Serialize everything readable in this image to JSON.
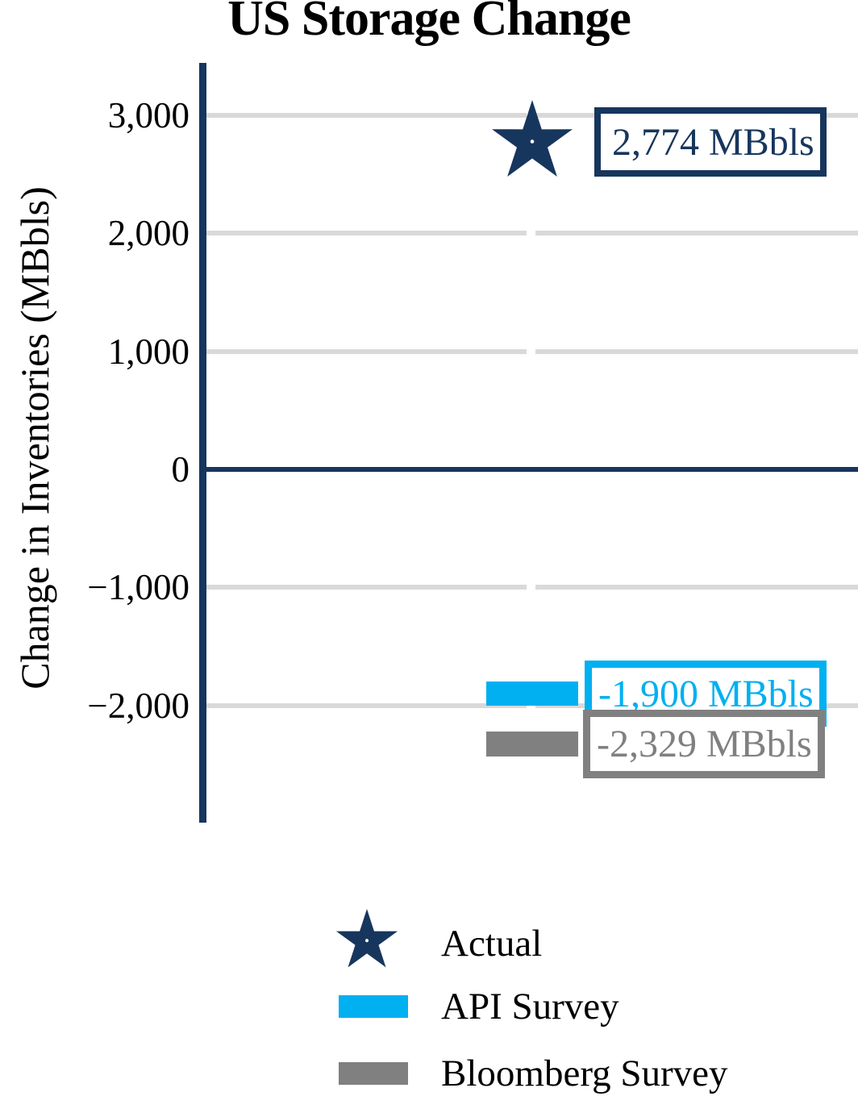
{
  "title": "US Storage Change",
  "y_axis": {
    "label": "Change in Inventories (MBbls)",
    "ticks": [
      "3,000",
      "2,000",
      "1,000",
      "0",
      "−1,000",
      "−2,000"
    ]
  },
  "colors": {
    "navy": "#17365D",
    "cyan": "#00B0F0",
    "gray": "#808080",
    "gridline": "#D9D9D9",
    "background": "#FFFFFF"
  },
  "chart_data": {
    "type": "scatter",
    "title": "US Storage Change",
    "xlabel": "",
    "ylabel": "Change in Inventories (MBbls)",
    "ylim": [
      -3000,
      3500
    ],
    "yticks": [
      3000,
      2000,
      1000,
      0,
      -1000,
      -2000
    ],
    "grid": true,
    "legend_position": "bottom",
    "series": [
      {
        "name": "Actual",
        "marker": "star",
        "color": "#17365D",
        "value": 2774,
        "label": "2,774 MBbls"
      },
      {
        "name": "API Survey",
        "marker": "dash",
        "color": "#00B0F0",
        "value": -1900,
        "label": "-1,900 MBbls"
      },
      {
        "name": "Bloomberg Survey",
        "marker": "dash",
        "color": "#808080",
        "value": -2329,
        "label": "-2,329 MBbls"
      }
    ]
  }
}
